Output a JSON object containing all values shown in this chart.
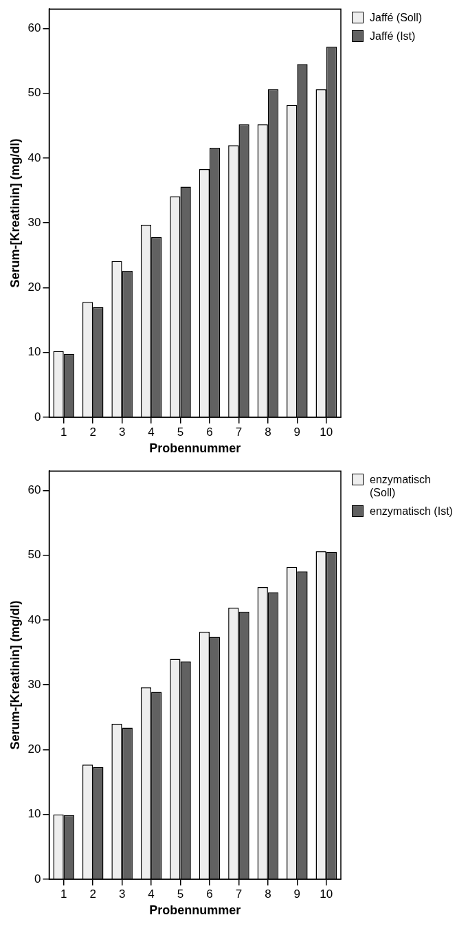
{
  "chart_data": [
    {
      "type": "bar",
      "xlabel": "Probennummer",
      "ylabel": "Serum-[Kreatinin] (mg/dl)",
      "categories": [
        "1",
        "2",
        "3",
        "4",
        "5",
        "6",
        "7",
        "8",
        "9",
        "10"
      ],
      "ylim": [
        0,
        63
      ],
      "yticks": [
        0,
        10,
        20,
        30,
        40,
        50,
        60
      ],
      "grid": false,
      "legend": "top right",
      "series": [
        {
          "name": "Jaffé (Soll)",
          "color": "#eeeeee",
          "values": [
            10.2,
            17.8,
            24.1,
            29.7,
            34.1,
            38.3,
            42.0,
            45.2,
            48.2,
            50.6
          ]
        },
        {
          "name": "Jaffé (Ist)",
          "color": "#616161",
          "values": [
            9.8,
            17.0,
            22.6,
            27.8,
            35.6,
            41.6,
            45.2,
            50.6,
            54.5,
            57.2
          ]
        }
      ]
    },
    {
      "type": "bar",
      "xlabel": "Probennummer",
      "ylabel": "Serum-[Kreatinin] (mg/dl)",
      "categories": [
        "1",
        "2",
        "3",
        "4",
        "5",
        "6",
        "7",
        "8",
        "9",
        "10"
      ],
      "ylim": [
        0,
        63
      ],
      "yticks": [
        0,
        10,
        20,
        30,
        40,
        50,
        60
      ],
      "grid": false,
      "legend": "top right",
      "series": [
        {
          "name": "enzymatisch (Soll)",
          "color": "#eeeeee",
          "values": [
            10.0,
            17.7,
            24.0,
            29.6,
            34.0,
            38.2,
            41.9,
            45.1,
            48.2,
            50.6
          ]
        },
        {
          "name": "enzymatisch (Ist)",
          "color": "#616161",
          "values": [
            9.9,
            17.3,
            23.4,
            28.9,
            33.6,
            37.4,
            41.3,
            44.3,
            47.5,
            50.5
          ]
        }
      ]
    }
  ]
}
